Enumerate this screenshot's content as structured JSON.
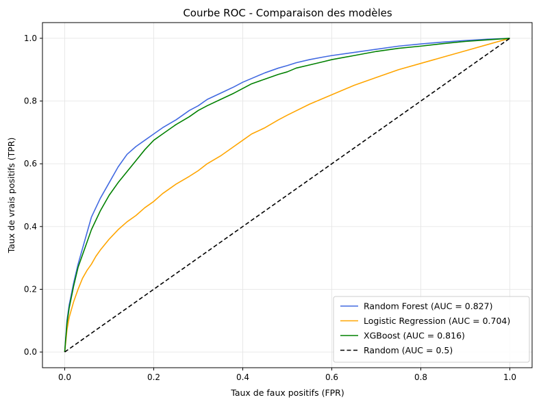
{
  "chart_data": {
    "type": "line",
    "title": "Courbe ROC - Comparaison des modèles",
    "xlabel": "Taux de faux positifs (FPR)",
    "ylabel": "Taux de vrais positifs (TPR)",
    "xlim": [
      -0.05,
      1.05
    ],
    "ylim": [
      -0.05,
      1.05
    ],
    "xticks": [
      0.0,
      0.2,
      0.4,
      0.6,
      0.8,
      1.0
    ],
    "xtick_labels": [
      "0.0",
      "0.2",
      "0.4",
      "0.6",
      "0.8",
      "1.0"
    ],
    "yticks": [
      0.0,
      0.2,
      0.4,
      0.6,
      0.8,
      1.0
    ],
    "ytick_labels": [
      "0.0",
      "0.2",
      "0.4",
      "0.6",
      "0.8",
      "1.0"
    ],
    "grid": true,
    "legend_position": "bottom-right",
    "series": [
      {
        "name": "Random Forest (AUC = 0.827)",
        "color": "#4169e1",
        "dash": "solid",
        "x": [
          0,
          0.005,
          0.01,
          0.02,
          0.03,
          0.04,
          0.05,
          0.06,
          0.07,
          0.08,
          0.1,
          0.12,
          0.14,
          0.16,
          0.18,
          0.2,
          0.22,
          0.25,
          0.28,
          0.3,
          0.32,
          0.35,
          0.38,
          0.4,
          0.42,
          0.45,
          0.48,
          0.5,
          0.52,
          0.55,
          0.58,
          0.6,
          0.65,
          0.7,
          0.75,
          0.8,
          0.85,
          0.9,
          0.95,
          1.0
        ],
        "y": [
          0,
          0.1,
          0.15,
          0.22,
          0.28,
          0.33,
          0.38,
          0.43,
          0.46,
          0.49,
          0.54,
          0.59,
          0.63,
          0.655,
          0.675,
          0.695,
          0.715,
          0.74,
          0.77,
          0.785,
          0.805,
          0.825,
          0.845,
          0.86,
          0.872,
          0.89,
          0.905,
          0.913,
          0.922,
          0.932,
          0.94,
          0.945,
          0.955,
          0.965,
          0.975,
          0.982,
          0.988,
          0.993,
          0.997,
          1.0
        ]
      },
      {
        "name": "Logistic Regression (AUC = 0.704)",
        "color": "#ffa500",
        "dash": "solid",
        "x": [
          0,
          0.005,
          0.01,
          0.02,
          0.03,
          0.04,
          0.05,
          0.06,
          0.07,
          0.08,
          0.1,
          0.12,
          0.14,
          0.16,
          0.18,
          0.2,
          0.22,
          0.25,
          0.28,
          0.3,
          0.32,
          0.35,
          0.38,
          0.4,
          0.42,
          0.45,
          0.48,
          0.5,
          0.55,
          0.6,
          0.65,
          0.7,
          0.75,
          0.8,
          0.85,
          0.9,
          0.95,
          1.0
        ],
        "y": [
          0,
          0.07,
          0.11,
          0.16,
          0.2,
          0.235,
          0.26,
          0.28,
          0.305,
          0.325,
          0.36,
          0.39,
          0.415,
          0.435,
          0.46,
          0.48,
          0.505,
          0.535,
          0.56,
          0.578,
          0.6,
          0.625,
          0.655,
          0.675,
          0.695,
          0.715,
          0.74,
          0.755,
          0.79,
          0.82,
          0.85,
          0.875,
          0.9,
          0.92,
          0.94,
          0.96,
          0.98,
          1.0
        ]
      },
      {
        "name": "XGBoost (AUC = 0.816)",
        "color": "#008000",
        "dash": "solid",
        "x": [
          0,
          0.005,
          0.01,
          0.02,
          0.03,
          0.04,
          0.05,
          0.06,
          0.07,
          0.08,
          0.1,
          0.12,
          0.14,
          0.16,
          0.18,
          0.2,
          0.22,
          0.25,
          0.28,
          0.3,
          0.32,
          0.35,
          0.38,
          0.4,
          0.42,
          0.45,
          0.48,
          0.5,
          0.52,
          0.55,
          0.58,
          0.6,
          0.65,
          0.7,
          0.75,
          0.8,
          0.85,
          0.9,
          0.95,
          1.0
        ],
        "y": [
          0,
          0.09,
          0.14,
          0.21,
          0.27,
          0.31,
          0.35,
          0.39,
          0.42,
          0.45,
          0.5,
          0.54,
          0.575,
          0.61,
          0.645,
          0.675,
          0.695,
          0.725,
          0.75,
          0.77,
          0.785,
          0.805,
          0.825,
          0.84,
          0.855,
          0.87,
          0.885,
          0.893,
          0.905,
          0.915,
          0.925,
          0.932,
          0.945,
          0.958,
          0.968,
          0.975,
          0.983,
          0.99,
          0.995,
          1.0
        ]
      },
      {
        "name": "Random (AUC = 0.5)",
        "color": "#000000",
        "dash": "dashed",
        "x": [
          0,
          1
        ],
        "y": [
          0,
          1
        ]
      }
    ]
  }
}
